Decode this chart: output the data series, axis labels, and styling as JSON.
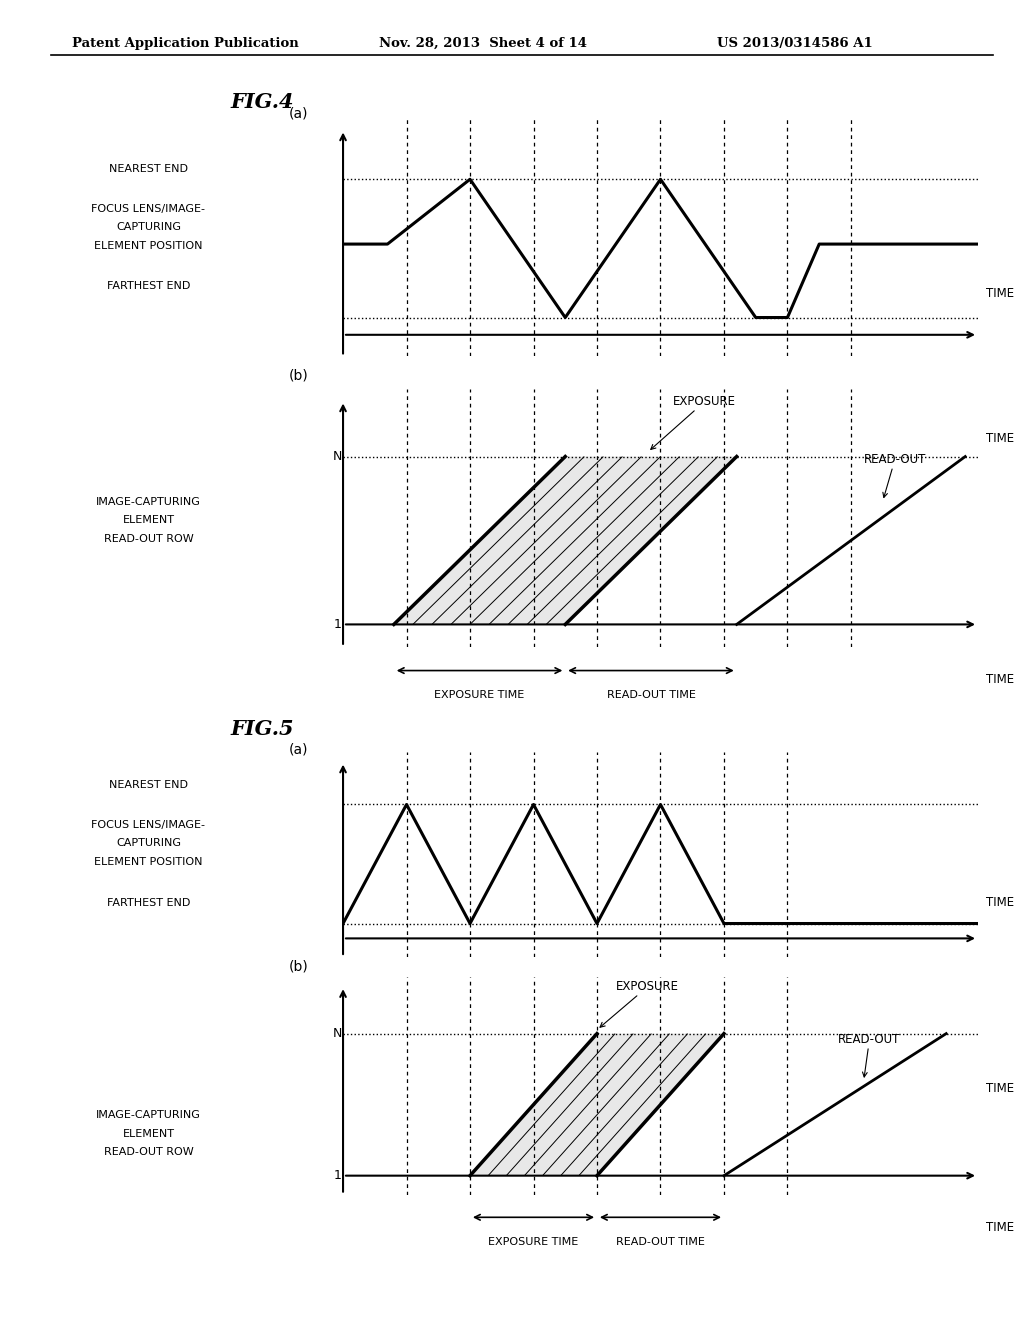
{
  "header_left": "Patent Application Publication",
  "header_mid": "Nov. 28, 2013  Sheet 4 of 14",
  "header_right": "US 2013/0314586 A1",
  "fig4_title": "FIG.4",
  "fig5_title": "FIG.5",
  "bg_color": "#ffffff",
  "line_color": "#000000",
  "fig4a_label": "(a)",
  "fig4b_label": "(b)",
  "fig5a_label": "(a)",
  "fig5b_label": "(b)",
  "nearest_end_label": "NEAREST END",
  "focus_label_1": "FOCUS LENS/IMAGE-",
  "focus_label_2": "CAPTURING",
  "focus_label_3": "ELEMENT POSITION",
  "farthest_end_label": "FARTHEST END",
  "time_label": "TIME",
  "exposure_label": "EXPOSURE",
  "readout_label": "READ-OUT",
  "image_capturing_1": "IMAGE-CAPTURING",
  "image_capturing_2": "ELEMENT",
  "image_capturing_3": "READ-OUT ROW",
  "exposure_time_label": "EXPOSURE TIME",
  "readout_time_label": "READ-OUT TIME",
  "n_label": "N",
  "one_label": "1"
}
